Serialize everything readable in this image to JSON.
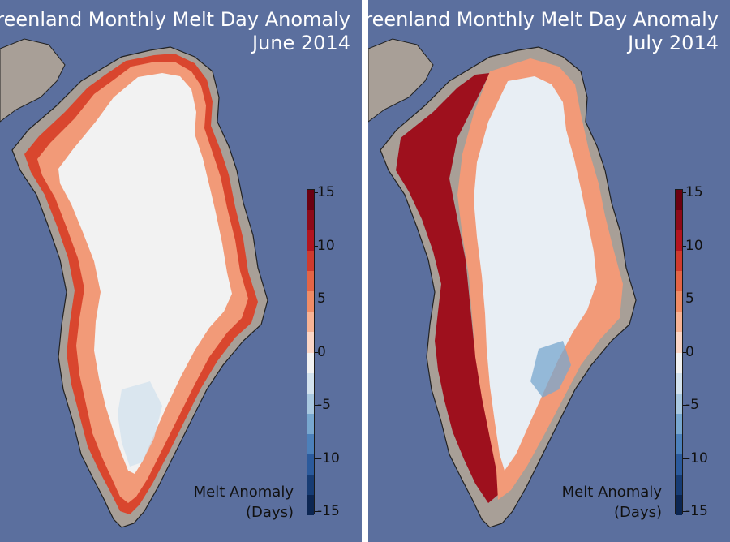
{
  "panels": [
    {
      "title_line1": "Greenland Monthly Melt Day Anomaly",
      "title_line2": "June 2014",
      "legend_title_line1": "Melt Anomaly",
      "legend_title_line2": "(Days)"
    },
    {
      "title_line1": "Greenland Monthly Melt Day Anomaly",
      "title_line2": "July 2014",
      "legend_title_line1": "Melt Anomaly",
      "legend_title_line2": "(Days)"
    }
  ],
  "colorbar": {
    "min": -15,
    "max": 15,
    "tick_labels": [
      "15",
      "10",
      "5",
      "0",
      "-5",
      "-10",
      "-15"
    ],
    "colors": [
      "#6b0010",
      "#8e0a1a",
      "#b3141f",
      "#cf3a2e",
      "#e36446",
      "#f08c66",
      "#f7b395",
      "#fbd6c6",
      "#f2f2f2",
      "#d3e2ee",
      "#a9c8e0",
      "#78a7cf",
      "#4c80ba",
      "#2b5a9c",
      "#173c74",
      "#0c2652"
    ]
  },
  "colors": {
    "ocean": "#5b6f9e",
    "land": "#a89f97",
    "ice": "#f2f2f2",
    "coast": "#222222"
  }
}
